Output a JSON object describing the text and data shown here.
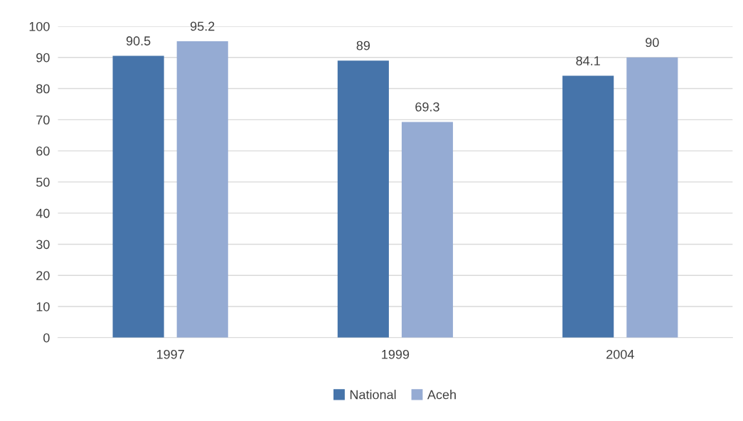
{
  "chart_data": {
    "type": "bar",
    "categories": [
      "1997",
      "1999",
      "2004"
    ],
    "series": [
      {
        "name": "National",
        "color": "#4674aa",
        "values": [
          90.5,
          89,
          84.1
        ]
      },
      {
        "name": "Aceh",
        "color": "#95abd3",
        "values": [
          95.2,
          69.3,
          90
        ]
      }
    ],
    "ylim": [
      0,
      100
    ],
    "yticks": [
      0,
      10,
      20,
      30,
      40,
      50,
      60,
      70,
      80,
      90,
      100
    ],
    "grid": "y",
    "legend": "bottom",
    "data_labels": true
  }
}
